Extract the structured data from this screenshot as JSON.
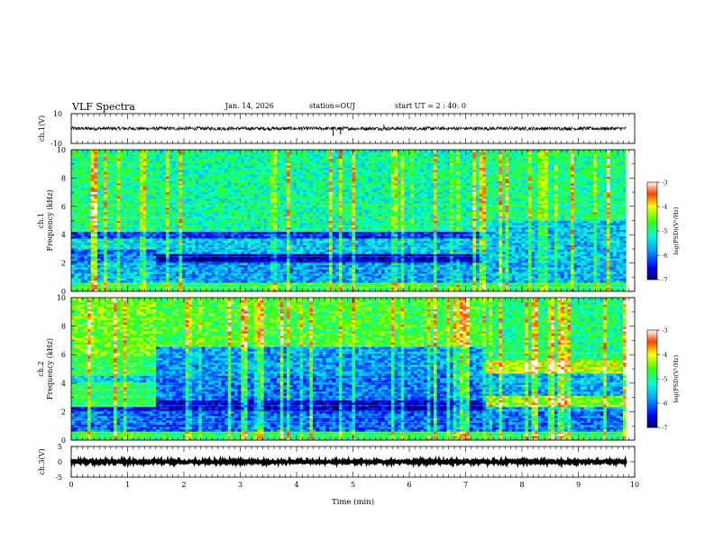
{
  "header": {
    "title": "VLF Spectra",
    "date": "Jan. 14, 2026",
    "station": "station=OUJ",
    "start": "start UT =  2 : 40: 0"
  },
  "chart_data": [
    {
      "type": "line",
      "name": "ch1-waveform",
      "ylabel": "ch.1(V)",
      "ylim": [
        -10,
        10
      ],
      "yticks": [
        "10",
        "-10"
      ],
      "baseline": 0,
      "noise_amplitude": 1.2,
      "spikes": [
        {
          "t": 4.65,
          "v": -5
        },
        {
          "t": 4.78,
          "v": -4
        },
        {
          "t": 5.55,
          "v": 2.5
        }
      ]
    },
    {
      "type": "heatmap",
      "name": "ch1-spectrogram",
      "ylabel_1": "ch.1",
      "ylabel_2": "Frequency (kHz)",
      "ylim": [
        0,
        10
      ],
      "yticks": [
        "0",
        "2",
        "4",
        "6",
        "8",
        "10"
      ],
      "colorbar": {
        "label": "log(PSD)(V²/Hz)",
        "ticks": [
          "-3",
          "-4",
          "-5",
          "-6",
          "-7"
        ],
        "range": [
          -7,
          -3
        ]
      },
      "segments": [
        {
          "t0": 0,
          "t1": 1.5,
          "bands": [
            [
              0,
              0.7,
              -4.8
            ],
            [
              0.7,
              2.1,
              -5.6
            ],
            [
              2.1,
              2.9,
              -6.0
            ],
            [
              2.9,
              3.8,
              -5.4
            ],
            [
              3.8,
              4.2,
              -6.3
            ],
            [
              4.2,
              10,
              -5.0
            ]
          ]
        },
        {
          "t0": 1.5,
          "t1": 7.35,
          "bands": [
            [
              0,
              0.7,
              -4.8
            ],
            [
              0.7,
              2.1,
              -5.8
            ],
            [
              2.1,
              2.7,
              -6.8
            ],
            [
              2.7,
              3.8,
              -5.6
            ],
            [
              3.8,
              4.2,
              -6.4
            ],
            [
              4.2,
              10,
              -5.1
            ]
          ]
        },
        {
          "t0": 7.35,
          "t1": 9.85,
          "bands": [
            [
              0,
              0.7,
              -4.9
            ],
            [
              0.7,
              2.1,
              -5.7
            ],
            [
              2.1,
              3.8,
              -5.6
            ],
            [
              3.8,
              5.0,
              -5.6
            ],
            [
              5.0,
              10,
              -5.0
            ]
          ]
        }
      ]
    },
    {
      "type": "heatmap",
      "name": "ch2-spectrogram",
      "ylabel_1": "ch.2",
      "ylabel_2": "Frequency (kHz)",
      "ylim": [
        0,
        10
      ],
      "yticks": [
        "0",
        "2",
        "4",
        "6",
        "8",
        "10"
      ],
      "colorbar": {
        "label": "log(PSD)(V²/Hz)",
        "ticks": [
          "-3",
          "-4",
          "-5",
          "-6",
          "-7"
        ],
        "range": [
          -7,
          -3
        ]
      },
      "segments": [
        {
          "t0": 0,
          "t1": 1.5,
          "bands": [
            [
              0,
              0.6,
              -4.8
            ],
            [
              0.6,
              2.0,
              -6.0
            ],
            [
              2.0,
              2.3,
              -6.5
            ],
            [
              2.3,
              4.0,
              -4.9
            ],
            [
              4.0,
              4.5,
              -5.6
            ],
            [
              4.5,
              6.0,
              -4.8
            ],
            [
              6.0,
              10,
              -4.5
            ]
          ]
        },
        {
          "t0": 1.5,
          "t1": 7.35,
          "bands": [
            [
              0,
              0.6,
              -4.9
            ],
            [
              0.6,
              2.0,
              -6.1
            ],
            [
              2.0,
              2.8,
              -6.7
            ],
            [
              2.8,
              4.5,
              -6.0
            ],
            [
              4.5,
              6.5,
              -5.8
            ],
            [
              6.5,
              10,
              -4.7
            ]
          ]
        },
        {
          "t0": 7.35,
          "t1": 9.85,
          "bands": [
            [
              0,
              0.6,
              -4.9
            ],
            [
              0.6,
              2.0,
              -6.0
            ],
            [
              2.0,
              2.4,
              -5.8
            ],
            [
              2.4,
              3.2,
              -4.5
            ],
            [
              3.2,
              4.7,
              -5.7
            ],
            [
              4.7,
              5.6,
              -4.2
            ],
            [
              5.6,
              10,
              -5.0
            ]
          ]
        }
      ]
    },
    {
      "type": "line",
      "name": "ch3-waveform",
      "ylabel": "ch.3(V)",
      "ylim": [
        -5,
        5
      ],
      "yticks": [
        "5",
        "0",
        "-5"
      ],
      "baseline": 0,
      "noise_amplitude": 0.35
    }
  ],
  "time_axis": {
    "xlabel": "Time (min)",
    "xlim": [
      0,
      10
    ],
    "data_end": 9.85,
    "ticks": [
      "0",
      "1",
      "2",
      "3",
      "4",
      "5",
      "6",
      "7",
      "8",
      "9",
      "10"
    ]
  }
}
